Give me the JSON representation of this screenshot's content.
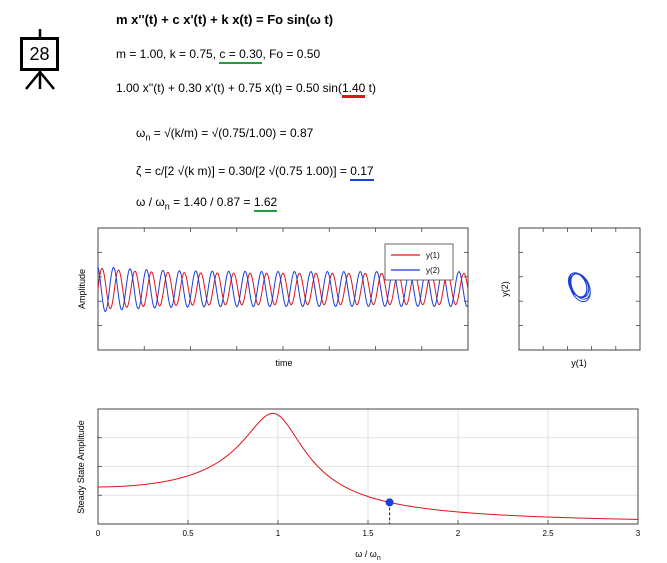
{
  "slide_badge": {
    "number": "28"
  },
  "equations": {
    "title": "m x''(t) + c x'(t) + k x(t) = Fo sin(ω t)",
    "params_prefix": "m = 1.00, k = 0.75, ",
    "params_c": "c = 0.30",
    "params_suffix": ", Fo = 0.50",
    "numeric_prefix": "1.00 x''(t) + 0.30 x'(t) + 0.75 x(t) = 0.50 sin(",
    "numeric_omega": "1.40",
    "numeric_suffix": " t)",
    "wn_lhs": "ω",
    "wn_sub": "n",
    "wn_rhs": " = √(k/m) = √(0.75/1.00) = 0.87",
    "zeta_prefix": "ζ = c/[2 √(k m)] = 0.30/[2 √(0.75 1.00)] = ",
    "zeta_value": "0.17",
    "ratio_lhs": "ω / ω",
    "ratio_sub": "n",
    "ratio_mid": " = 1.40 / 0.87 = ",
    "ratio_value": "1.62"
  },
  "colors": {
    "red": "#e0141b",
    "blue": "#1a3fd6",
    "green": "#1f9e3a",
    "grid": "#d9d9d9"
  },
  "chart_data": [
    {
      "type": "line",
      "xlabel": "time",
      "ylabel": "Amplitude",
      "grid": false,
      "legend": "top-right",
      "series": [
        {
          "name": "y(1)",
          "color": "#e0141b",
          "amplitude": 0.9,
          "periods": 22.5,
          "phase": 0.0
        },
        {
          "name": "y(2)",
          "color": "#1a3fd6",
          "amplitude": 1.0,
          "periods": 22.5,
          "phase": 1.9
        }
      ],
      "ylim": [
        -3.5,
        3.5
      ]
    },
    {
      "type": "line",
      "xlabel": "y(1)",
      "ylabel": "y(2)",
      "grid": false,
      "series": [
        {
          "name": "y(2) vs y(1)",
          "color": "#1a3fd6"
        }
      ]
    },
    {
      "type": "line",
      "xlabel": "ω / ω",
      "xlabel_sub": "n",
      "ylabel": "Steady State Amplitude",
      "xlim": [
        0,
        3
      ],
      "xticks": [
        "0",
        "0.5",
        "1",
        "1.5",
        "2",
        "2.5",
        "3"
      ],
      "grid": true,
      "zeta": 0.17,
      "marker": {
        "x": 1.62,
        "color": "#1a3fd6"
      },
      "series": [
        {
          "name": "amplitude",
          "color": "#e0141b"
        }
      ]
    }
  ]
}
